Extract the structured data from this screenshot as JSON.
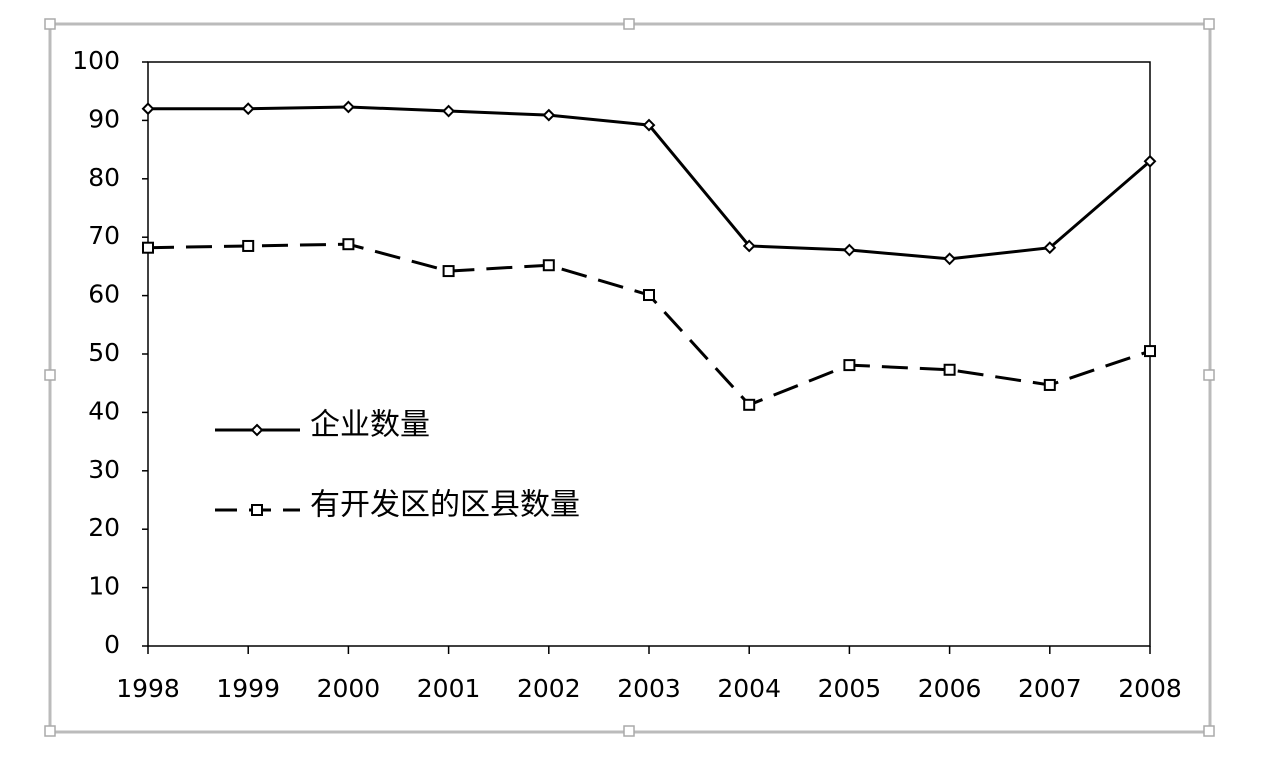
{
  "chart_data": {
    "type": "line",
    "categories": [
      "1998",
      "1999",
      "2000",
      "2001",
      "2002",
      "2003",
      "2004",
      "2005",
      "2006",
      "2007",
      "2008"
    ],
    "series": [
      {
        "name": "企业数量",
        "color": "#000000",
        "line_style": "solid",
        "marker": "diamond",
        "values": [
          92,
          92,
          92.3,
          91.6,
          90.9,
          89.2,
          68.5,
          67.8,
          66.3,
          68.2,
          83.0
        ]
      },
      {
        "name": "有开发区的区县数量",
        "color": "#000000",
        "line_style": "dashed",
        "marker": "square",
        "values": [
          68.2,
          68.5,
          68.8,
          64.2,
          65.2,
          60.1,
          41.3,
          48.1,
          47.3,
          44.7,
          50.5
        ]
      }
    ],
    "ylim": [
      0,
      100
    ],
    "yticks": [
      0,
      10,
      20,
      30,
      40,
      50,
      60,
      70,
      80,
      90,
      100
    ],
    "grid": false,
    "legend": "left"
  }
}
